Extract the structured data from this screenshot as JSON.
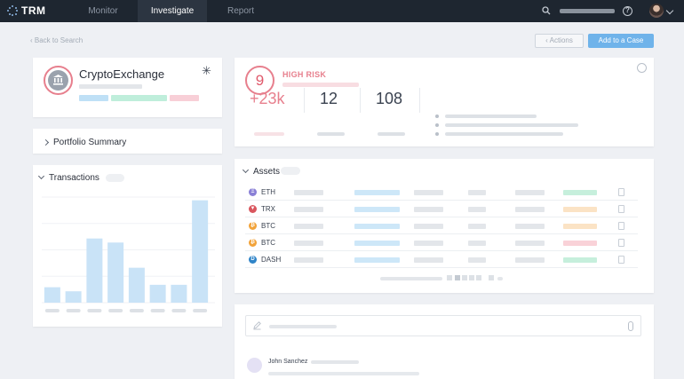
{
  "app": {
    "logo_text": "TRM"
  },
  "nav": {
    "tabs": [
      {
        "label": "Monitor",
        "active": false
      },
      {
        "label": "Investigate",
        "active": true
      },
      {
        "label": "Report",
        "active": false
      }
    ]
  },
  "header": {
    "help_icon": "?"
  },
  "back": {
    "label": "‹ Back to Search"
  },
  "toolbar": {
    "actions_label": "‹ Actions",
    "add_case_label": "Add to a Case"
  },
  "entity": {
    "name": "CryptoExchange",
    "icon": "bank-icon",
    "pin_icon": "snowflake-icon",
    "tag_colors": [
      "#bfe0f6",
      "#bfeedb",
      "#f8cfd7"
    ]
  },
  "portfolio": {
    "title": "Portfolio Summary"
  },
  "transactions": {
    "title": "Transactions"
  },
  "chart_data": {
    "type": "bar",
    "title": "",
    "categories": [
      "",
      "",
      "",
      "",
      "",
      "",
      "",
      ""
    ],
    "values": [
      19,
      14,
      79,
      74,
      43,
      22,
      22,
      126
    ],
    "ylim": [
      0,
      130
    ],
    "grid": true,
    "bar_color": "#c9e3f7"
  },
  "risk": {
    "score": "9",
    "label": "HIGH RISK",
    "accent_color": "#e77f8d",
    "stats": [
      {
        "value": "+23k",
        "color": "#e77f8d"
      },
      {
        "value": "12",
        "color": "#3a4250"
      },
      {
        "value": "108",
        "color": "#3a4250"
      }
    ]
  },
  "assets": {
    "title": "Assets",
    "rows": [
      {
        "symbol": "ETH",
        "coin_color": "#8a80d6",
        "glyph": "Ξ",
        "tag_color": "#c6efdc"
      },
      {
        "symbol": "TRX",
        "coin_color": "#d9565e",
        "glyph": "▼",
        "tag_color": "#fbe3c5"
      },
      {
        "symbol": "BTC",
        "coin_color": "#f2a33a",
        "glyph": "₿",
        "tag_color": "#fbe3c5"
      },
      {
        "symbol": "BTC",
        "coin_color": "#f2a33a",
        "glyph": "₿",
        "tag_color": "#f9d2d8"
      },
      {
        "symbol": "DASH",
        "coin_color": "#2f84c8",
        "glyph": "D",
        "tag_color": "#c6efdc"
      }
    ]
  },
  "notes": {
    "author": "John Sanchez"
  }
}
